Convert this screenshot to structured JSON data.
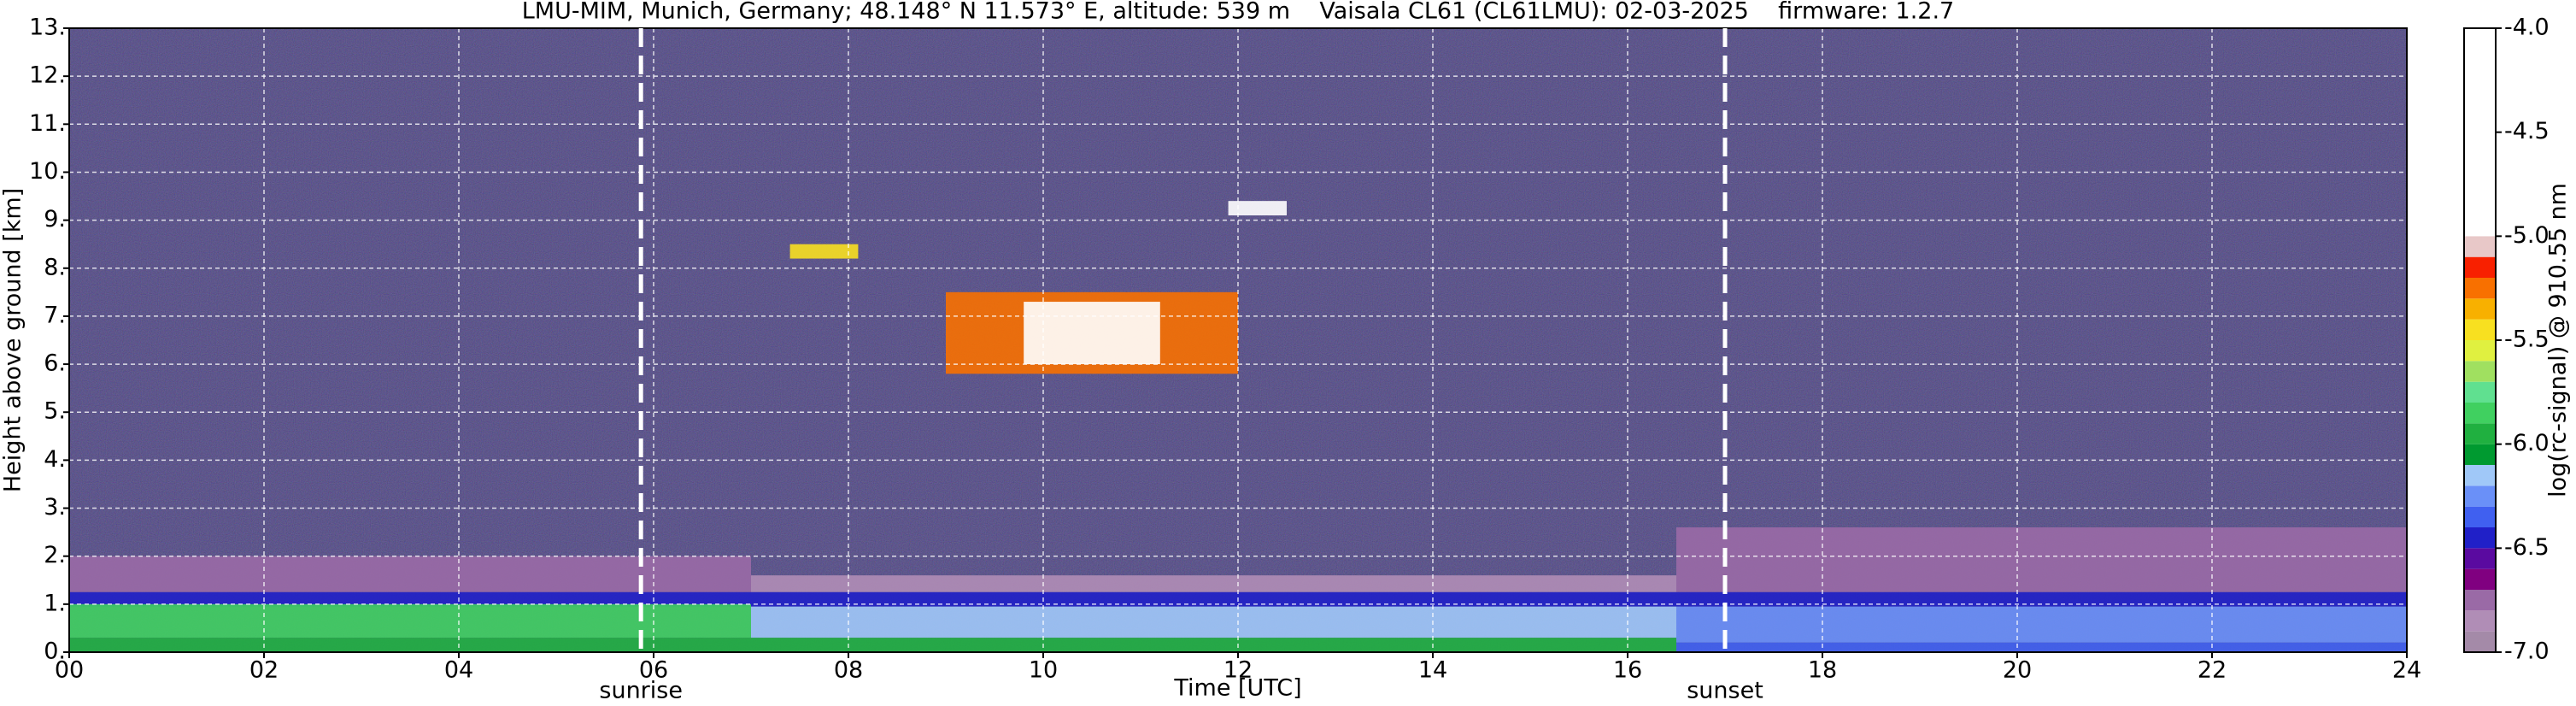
{
  "chart_data": {
    "type": "heatmap",
    "title": "LMU-MIM, Munich, Germany; 48.148° N 11.573° E, altitude: 539 m    Vaisala CL61 (CL61LMU): 02-03-2025    firmware: 1.2.7",
    "x_label": "Time [UTC]",
    "y_label": "Height above ground [km]",
    "xlim": [
      0,
      24
    ],
    "xticks": [
      {
        "value": 0,
        "label": "00"
      },
      {
        "value": 2,
        "label": "02"
      },
      {
        "value": 4,
        "label": "04"
      },
      {
        "value": 6,
        "label": "06"
      },
      {
        "value": 8,
        "label": "08"
      },
      {
        "value": 10,
        "label": "10"
      },
      12,
      14,
      16,
      18,
      20,
      22,
      24
    ],
    "ylim": [
      0,
      13
    ],
    "yticks": [
      {
        "value": 0,
        "label": "0."
      },
      {
        "value": 1,
        "label": "1."
      },
      {
        "value": 2,
        "label": "2."
      },
      {
        "value": 3,
        "label": "3."
      },
      {
        "value": 4,
        "label": "4."
      },
      {
        "value": 5,
        "label": "5."
      },
      {
        "value": 6,
        "label": "6."
      },
      {
        "value": 7,
        "label": "7."
      },
      {
        "value": 8,
        "label": "8."
      },
      {
        "value": 9,
        "label": "9."
      },
      {
        "value": 10,
        "label": "10."
      },
      {
        "value": 11,
        "label": "11."
      },
      {
        "value": 12,
        "label": "12."
      },
      {
        "value": 13,
        "label": "13."
      }
    ],
    "grid": true,
    "events": [
      {
        "x": 5.87,
        "label": "sunrise"
      },
      {
        "x": 17.0,
        "label": "sunset"
      }
    ],
    "cells": [
      {
        "x": [
          0,
          7
        ],
        "y": [
          1.25,
          2.0
        ],
        "value": -6.8
      },
      {
        "x": [
          16.5,
          24
        ],
        "y": [
          1.25,
          2.6
        ],
        "value": -6.8
      },
      {
        "x": [
          7,
          16.5
        ],
        "y": [
          1.25,
          1.6
        ],
        "value": -6.9
      },
      {
        "x": [
          0,
          24
        ],
        "y": [
          0.95,
          1.25
        ],
        "value": -6.5
      },
      {
        "x": [
          0,
          7
        ],
        "y": [
          0.3,
          1.0
        ],
        "value": -5.9
      },
      {
        "x": [
          7,
          16.5
        ],
        "y": [
          0.3,
          0.95
        ],
        "value": -6.2
      },
      {
        "x": [
          16.5,
          24
        ],
        "y": [
          0.2,
          0.95
        ],
        "value": -6.3
      },
      {
        "x": [
          0,
          16.5
        ],
        "y": [
          0,
          0.3
        ],
        "value": -6.0
      },
      {
        "x": [
          16.5,
          24
        ],
        "y": [
          0,
          0.2
        ],
        "value": -6.4
      },
      {
        "x": [
          9.0,
          12.0
        ],
        "y": [
          5.8,
          7.5
        ],
        "value": -5.3
      },
      {
        "x": [
          9.8,
          11.2
        ],
        "y": [
          6.0,
          7.3
        ],
        "value": -4.5
      },
      {
        "x": [
          7.4,
          8.1
        ],
        "y": [
          8.2,
          8.5
        ],
        "value": -5.5
      },
      {
        "x": [
          11.9,
          12.5
        ],
        "y": [
          9.1,
          9.4
        ],
        "value": -4.8
      }
    ],
    "colorbar": {
      "label": "log(rc-signal) @ 910.55 nm",
      "ylim": [
        -7.0,
        -4.0
      ],
      "yticks": [
        {
          "value": -7.0,
          "label": "-7.0"
        },
        {
          "value": -6.5,
          "label": "-6.5"
        },
        {
          "value": -6.0,
          "label": "-6.0"
        },
        {
          "value": -5.5,
          "label": "-5.5"
        },
        {
          "value": -5.0,
          "label": "-5.0"
        },
        {
          "value": -4.5,
          "label": "-4.5"
        },
        {
          "value": -4.0,
          "label": "-4.0"
        }
      ],
      "bins": [
        -7.0,
        -6.9,
        -6.8,
        -6.7,
        -6.6,
        -6.5,
        -6.4,
        -6.3,
        -6.2,
        -6.1,
        -6.0,
        -5.9,
        -5.8,
        -5.7,
        -5.6,
        -5.5,
        -5.4,
        -5.3,
        -5.2,
        -5.1,
        -5.0,
        -4.0
      ],
      "colors": [
        "#a48aa8",
        "#b08db6",
        "#9a6aa6",
        "#800080",
        "#5a0aa0",
        "#2020c8",
        "#4060f0",
        "#6a90f8",
        "#a0c8f8",
        "#009a30",
        "#20b040",
        "#40d060",
        "#60e090",
        "#a0e060",
        "#e0f040",
        "#f8e020",
        "#f8b000",
        "#f87000",
        "#f82000",
        "#e8c8c8",
        "#ffffff"
      ]
    }
  }
}
